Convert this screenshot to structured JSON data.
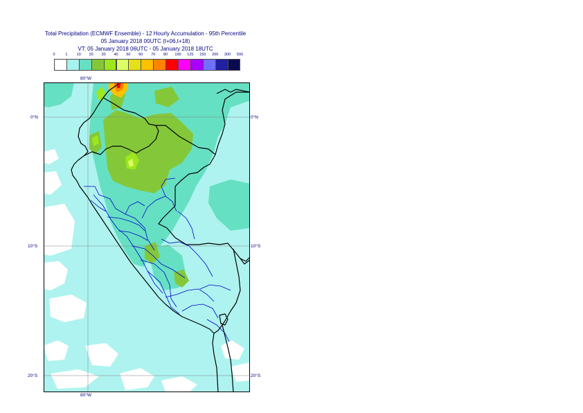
{
  "title": {
    "line1": "Total Precipitation (ECMWF Ensemble) - 12 Hourly Accumulation - 95th Percentile",
    "line2": "05 January 2018 00UTC (t+06,t+18)",
    "line3": "VT: 05 January 2018 06UTC - 05 January 2018 18UTC"
  },
  "legend": {
    "thresholds": [
      "0",
      "1",
      "10",
      "20",
      "30",
      "40",
      "50",
      "60",
      "70",
      "80",
      "100",
      "125",
      "150",
      "200",
      "300",
      "500"
    ],
    "colors": [
      "#ffffff",
      "#a6f2ee",
      "#66e0c2",
      "#84c83a",
      "#9ee61e",
      "#ddff66",
      "#e6e01a",
      "#ffc000",
      "#ff8200",
      "#ff0000",
      "#ff00ff",
      "#aa00ff",
      "#7070ff",
      "#2020a0",
      "#0a0a50"
    ]
  },
  "map": {
    "lat_labels": [
      "0°N",
      "10°S",
      "20°S"
    ],
    "lon_label": "80°W",
    "colors": {
      "land": "#aef3ef",
      "medium": "#66e0c2",
      "heavy": "#84c83a",
      "heavier": "#9ee61e",
      "peak": "#ddff66",
      "hot": "#ffc000",
      "hotter": "#ff8200",
      "extreme": "#ff0000",
      "border": "#000000",
      "admin": "#0000cc",
      "grid": "#808080"
    }
  }
}
